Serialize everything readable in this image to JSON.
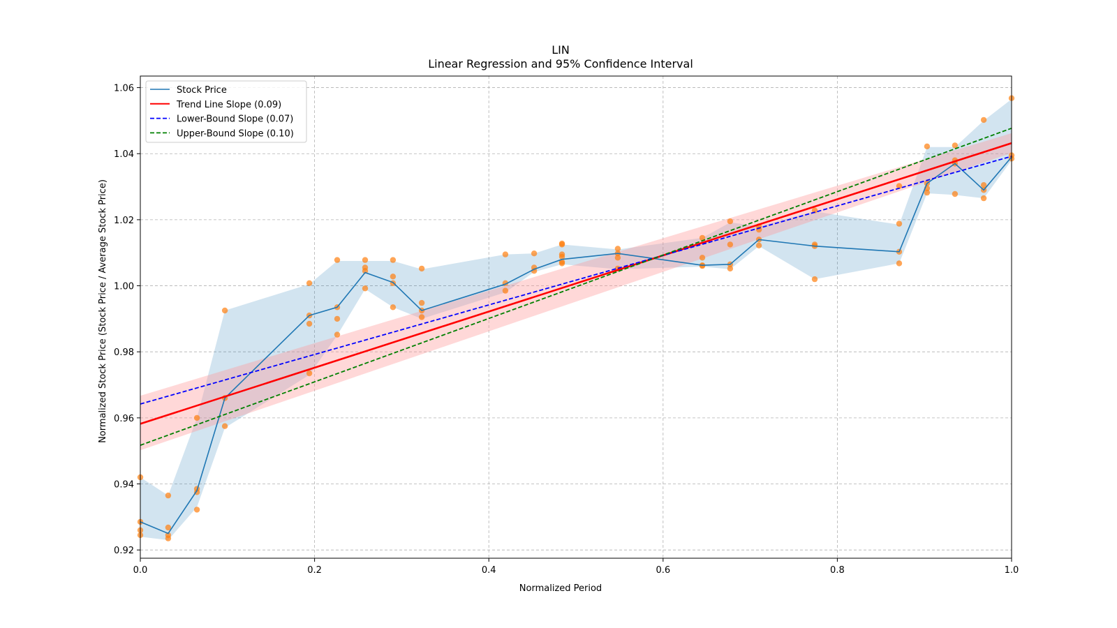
{
  "chart_data": {
    "type": "line",
    "title": "LIN",
    "subtitle": "Linear Regression and 95% Confidence Interval",
    "xlabel": "Normalized Period",
    "ylabel": "Normalized Stock Price (Stock Price / Average Stock Price)",
    "xlim": [
      0,
      1
    ],
    "ylim": [
      0.9175,
      1.0635
    ],
    "xticks": [
      0.0,
      0.2,
      0.4,
      0.6,
      0.8,
      1.0
    ],
    "xtick_labels": [
      "0.0",
      "0.2",
      "0.4",
      "0.6",
      "0.8",
      "1.0"
    ],
    "yticks": [
      0.92,
      0.94,
      0.96,
      0.98,
      1.0,
      1.02,
      1.04,
      1.06
    ],
    "ytick_labels": [
      "0.92",
      "0.94",
      "0.96",
      "0.98",
      "1.00",
      "1.02",
      "1.04",
      "1.06"
    ],
    "grid": true,
    "legend_position": "top-left",
    "colors": {
      "stock": "#1f77b4",
      "stock_band": "#1f77b4",
      "scatter": "#ff7f0e",
      "trend": "#ff0000",
      "trend_band": "#ff9999",
      "lower": "#0000ff",
      "upper": "#008000"
    },
    "series": [
      {
        "name": "Stock Price",
        "x": [
          0.0,
          0.032,
          0.065,
          0.097,
          0.194,
          0.226,
          0.258,
          0.29,
          0.323,
          0.419,
          0.452,
          0.484,
          0.548,
          0.645,
          0.677,
          0.71,
          0.774,
          0.871,
          0.903,
          0.935,
          0.968,
          1.0
        ],
        "y": [
          0.9285,
          0.925,
          0.938,
          0.966,
          0.991,
          0.9935,
          1.004,
          1.001,
          0.9925,
          1.0005,
          1.005,
          1.008,
          1.0098,
          1.0062,
          1.0065,
          1.014,
          1.012,
          1.0103,
          1.031,
          1.037,
          1.029,
          1.039
        ]
      },
      {
        "name": "Trend Line Slope (0.09)",
        "x": [
          0,
          1
        ],
        "y": [
          0.9582,
          1.0432
        ]
      },
      {
        "name": "Lower-Bound Slope (0.07)",
        "x": [
          0,
          1
        ],
        "y": [
          0.9642,
          1.0392
        ]
      },
      {
        "name": "Upper-Bound Slope (0.10)",
        "x": [
          0,
          1
        ],
        "y": [
          0.9517,
          1.0477
        ]
      }
    ],
    "stock_band": {
      "x": [
        0.0,
        0.032,
        0.065,
        0.097,
        0.194,
        0.226,
        0.258,
        0.29,
        0.323,
        0.419,
        0.452,
        0.484,
        0.548,
        0.645,
        0.677,
        0.71,
        0.774,
        0.871,
        0.903,
        0.935,
        0.968,
        1.0
      ],
      "upper": [
        0.942,
        0.9365,
        0.96,
        0.9925,
        1.0005,
        1.0075,
        1.0075,
        1.0075,
        1.005,
        1.0095,
        1.0098,
        1.0125,
        1.011,
        1.0145,
        1.0192,
        1.018,
        1.0225,
        1.0185,
        1.042,
        1.042,
        1.05,
        1.0565
      ],
      "lower": [
        0.924,
        0.923,
        0.933,
        0.957,
        0.973,
        0.985,
        0.999,
        0.9935,
        0.99,
        0.998,
        1.0042,
        1.0065,
        1.005,
        1.0058,
        1.005,
        1.012,
        1.002,
        1.0068,
        1.028,
        1.0275,
        1.0265,
        1.038
      ]
    },
    "trend_band": {
      "x": [
        0,
        1
      ],
      "upper": [
        0.9667,
        1.0462
      ],
      "lower": [
        0.9502,
        1.0402
      ]
    },
    "scatter_points": [
      [
        0.0,
        0.942
      ],
      [
        0.0,
        0.9285
      ],
      [
        0.0,
        0.926
      ],
      [
        0.0,
        0.9245
      ],
      [
        0.032,
        0.9365
      ],
      [
        0.032,
        0.9268
      ],
      [
        0.032,
        0.9245
      ],
      [
        0.032,
        0.9235
      ],
      [
        0.065,
        0.96
      ],
      [
        0.065,
        0.9385
      ],
      [
        0.065,
        0.9375
      ],
      [
        0.065,
        0.9322
      ],
      [
        0.097,
        0.9925
      ],
      [
        0.097,
        0.966
      ],
      [
        0.097,
        0.9575
      ],
      [
        0.194,
        1.0008
      ],
      [
        0.194,
        0.991
      ],
      [
        0.194,
        0.9885
      ],
      [
        0.194,
        0.9735
      ],
      [
        0.226,
        1.0078
      ],
      [
        0.226,
        0.9935
      ],
      [
        0.226,
        0.99
      ],
      [
        0.226,
        0.9852
      ],
      [
        0.258,
        1.0078
      ],
      [
        0.258,
        1.0055
      ],
      [
        0.258,
        1.0045
      ],
      [
        0.258,
        0.9992
      ],
      [
        0.29,
        1.0078
      ],
      [
        0.29,
        1.0028
      ],
      [
        0.29,
        1.0008
      ],
      [
        0.29,
        0.9935
      ],
      [
        0.323,
        1.0052
      ],
      [
        0.323,
        0.9948
      ],
      [
        0.323,
        0.9925
      ],
      [
        0.323,
        0.9905
      ],
      [
        0.419,
        1.0095
      ],
      [
        0.419,
        1.0008
      ],
      [
        0.419,
        0.9985
      ],
      [
        0.452,
        1.0098
      ],
      [
        0.452,
        1.0055
      ],
      [
        0.452,
        1.0045
      ],
      [
        0.484,
        1.0128
      ],
      [
        0.484,
        1.0125
      ],
      [
        0.484,
        1.0095
      ],
      [
        0.484,
        1.0088
      ],
      [
        0.484,
        1.0072
      ],
      [
        0.484,
        1.0068
      ],
      [
        0.548,
        1.0112
      ],
      [
        0.548,
        1.0098
      ],
      [
        0.548,
        1.0085
      ],
      [
        0.548,
        1.0052
      ],
      [
        0.645,
        1.0145
      ],
      [
        0.645,
        1.0085
      ],
      [
        0.645,
        1.0062
      ],
      [
        0.645,
        1.006
      ],
      [
        0.677,
        1.0195
      ],
      [
        0.677,
        1.0125
      ],
      [
        0.677,
        1.0065
      ],
      [
        0.677,
        1.0052
      ],
      [
        0.71,
        1.018
      ],
      [
        0.71,
        1.017
      ],
      [
        0.71,
        1.014
      ],
      [
        0.71,
        1.0122
      ],
      [
        0.774,
        1.0228
      ],
      [
        0.774,
        1.0125
      ],
      [
        0.774,
        1.012
      ],
      [
        0.774,
        1.002
      ],
      [
        0.871,
        1.0302
      ],
      [
        0.871,
        1.0188
      ],
      [
        0.871,
        1.0103
      ],
      [
        0.871,
        1.0068
      ],
      [
        0.903,
        1.0422
      ],
      [
        0.903,
        1.031
      ],
      [
        0.903,
        1.0295
      ],
      [
        0.903,
        1.0282
      ],
      [
        0.935,
        1.0425
      ],
      [
        0.935,
        1.038
      ],
      [
        0.935,
        1.037
      ],
      [
        0.935,
        1.0278
      ],
      [
        0.968,
        1.0502
      ],
      [
        0.968,
        1.0305
      ],
      [
        0.968,
        1.029
      ],
      [
        0.968,
        1.0265
      ],
      [
        1.0,
        1.0568
      ],
      [
        1.0,
        1.0395
      ],
      [
        1.0,
        1.0385
      ]
    ]
  }
}
